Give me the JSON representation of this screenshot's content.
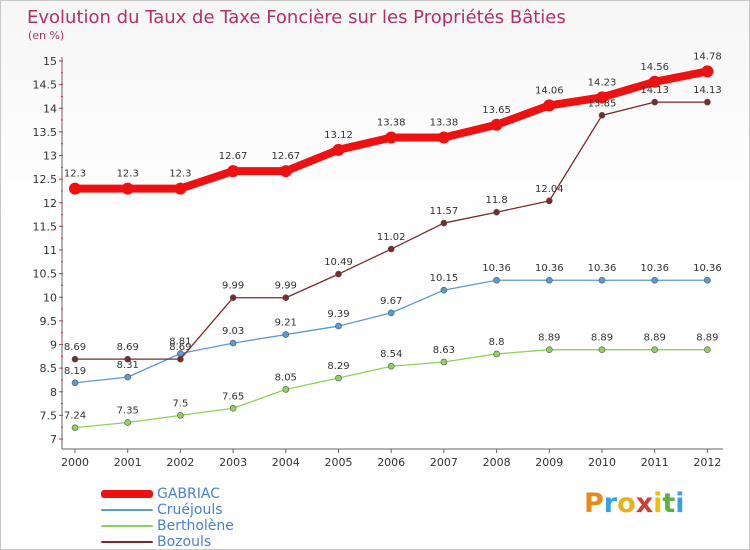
{
  "header": {
    "title": "Evolution du Taux de Taxe Foncière sur les Propriétés Bâties",
    "unit": "(en %)"
  },
  "brand": {
    "text": "Proxiti",
    "colors": [
      "#e88a1a",
      "#3aa0e0",
      "#e8b01a",
      "#d04030",
      "#f0c000",
      "#60b040",
      "#3aa0e0"
    ]
  },
  "chart_data": {
    "type": "line",
    "title": "Evolution du Taux de Taxe Foncière sur les Propriétés Bâties",
    "ylabel": "(en %)",
    "xlabel": "",
    "x": [
      "2000",
      "2001",
      "2002",
      "2003",
      "2004",
      "2005",
      "2006",
      "2007",
      "2008",
      "2009",
      "2010",
      "2011",
      "2012"
    ],
    "ylim": [
      7,
      15
    ],
    "yticks": [
      "7",
      "7.5",
      "8",
      "8.5",
      "9",
      "9.5",
      "10",
      "10.5",
      "11",
      "11.5",
      "12",
      "12.5",
      "13",
      "13.5",
      "14",
      "14.5",
      "15"
    ],
    "grid": false,
    "legend_position": "bottom-left",
    "series": [
      {
        "name": "GABRIAC",
        "color": "#ee1111",
        "values": [
          12.3,
          12.3,
          12.3,
          12.67,
          12.67,
          13.12,
          13.38,
          13.38,
          13.65,
          14.06,
          14.23,
          14.56,
          14.78
        ],
        "labels": [
          "12.3",
          "12.3",
          "12.3",
          "12.67",
          "12.67",
          "13.12",
          "13.38",
          "13.38",
          "13.65",
          "14.06",
          "14.23",
          "14.56",
          "14.78"
        ]
      },
      {
        "name": "Cruéjouls",
        "color": "#5b9bd5",
        "values": [
          8.19,
          8.31,
          8.81,
          9.03,
          9.21,
          9.39,
          9.67,
          10.15,
          10.36,
          10.36,
          10.36,
          10.36,
          10.36
        ],
        "labels": [
          "8.19",
          "8.31",
          "8.81",
          "9.03",
          "9.21",
          "9.39",
          "9.67",
          "10.15",
          "10.36",
          "10.36",
          "10.36",
          "10.36",
          "10.36"
        ]
      },
      {
        "name": "Bertholène",
        "color": "#8fd15a",
        "values": [
          7.24,
          7.35,
          7.5,
          7.65,
          8.05,
          8.29,
          8.54,
          8.63,
          8.8,
          8.89,
          8.89,
          8.89,
          8.89
        ],
        "labels": [
          "7.24",
          "7.35",
          "7.5",
          "7.65",
          "8.05",
          "8.29",
          "8.54",
          "8.63",
          "8.8",
          "8.89",
          "8.89",
          "8.89",
          "8.89"
        ]
      },
      {
        "name": "Bozouls",
        "color": "#7b2a2a",
        "values": [
          8.69,
          8.69,
          8.69,
          9.99,
          9.99,
          10.49,
          11.02,
          11.57,
          11.8,
          12.04,
          13.85,
          14.13,
          14.13
        ],
        "labels": [
          "8.69",
          "8.69",
          "8.69",
          "9.99",
          "9.99",
          "10.49",
          "11.02",
          "11.57",
          "11.8",
          "12.04",
          "13.85",
          "14.13",
          "14.13"
        ]
      }
    ]
  }
}
